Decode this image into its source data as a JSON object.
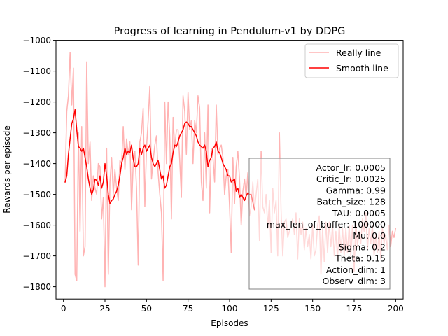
{
  "chart_data": {
    "type": "line",
    "title": "Progress of learning in Pendulum-v1 by DDPG",
    "xlabel": "Episodes",
    "ylabel": "Rewards per episode",
    "xlim": [
      -4.5,
      204.5
    ],
    "ylim": [
      -1840,
      -1000
    ],
    "x_ticks": [
      0,
      25,
      50,
      75,
      100,
      125,
      150,
      175,
      200
    ],
    "y_ticks": [
      -1000,
      -1100,
      -1200,
      -1300,
      -1400,
      -1500,
      -1600,
      -1700,
      -1800
    ],
    "x_tick_labels": [
      "0",
      "25",
      "50",
      "75",
      "100",
      "125",
      "150",
      "175",
      "200"
    ],
    "y_tick_labels": [
      "−1000",
      "−1100",
      "−1200",
      "−1300",
      "−1400",
      "−1500",
      "−1600",
      "−1700",
      "−1800"
    ],
    "grid": false,
    "legend_position": "top-right",
    "series": [
      {
        "name": "Really line",
        "color": "#ffb3b3",
        "x": [
          1,
          2,
          3,
          4,
          5,
          6,
          7,
          8,
          9,
          10,
          11,
          12,
          13,
          14,
          15,
          16,
          17,
          18,
          19,
          20,
          21,
          22,
          23,
          24,
          25,
          26,
          27,
          28,
          29,
          30,
          31,
          32,
          33,
          34,
          35,
          36,
          37,
          38,
          39,
          40,
          41,
          42,
          43,
          44,
          45,
          46,
          47,
          48,
          49,
          50,
          51,
          52,
          53,
          54,
          55,
          56,
          57,
          58,
          59,
          60,
          61,
          62,
          63,
          64,
          65,
          66,
          67,
          68,
          69,
          70,
          71,
          72,
          73,
          74,
          75,
          76,
          77,
          78,
          79,
          80,
          81,
          82,
          83,
          84,
          85,
          86,
          87,
          88,
          89,
          90,
          91,
          92,
          93,
          94,
          95,
          96,
          97,
          98,
          99,
          100,
          101,
          102,
          103,
          104,
          105,
          106,
          107,
          108,
          109,
          110,
          111,
          112,
          113,
          114,
          115,
          116,
          117,
          118,
          119,
          120,
          121,
          122,
          123,
          124,
          125,
          126,
          127,
          128,
          129,
          130,
          131,
          132,
          133,
          134,
          135,
          136,
          137,
          138,
          139,
          140,
          141,
          142,
          143,
          144,
          145,
          146,
          147,
          148,
          149,
          150,
          151,
          152,
          153,
          154,
          155,
          156,
          157,
          158,
          159,
          160,
          161,
          162,
          163,
          164,
          165,
          166,
          167,
          168,
          169,
          170,
          171,
          172,
          173,
          174,
          175,
          176,
          177,
          178,
          179,
          180,
          181,
          182,
          183,
          184,
          185,
          186,
          187,
          188,
          189,
          190,
          191,
          192,
          193,
          194,
          195,
          196,
          197,
          198,
          199,
          200
        ],
        "values": [
          -1460,
          -1230,
          -1180,
          -1040,
          -1210,
          -1090,
          -1760,
          -1780,
          -1300,
          -1620,
          -1280,
          -1700,
          -1670,
          -1070,
          -1400,
          -1330,
          -1520,
          -1440,
          -1480,
          -1500,
          -1400,
          -1410,
          -1580,
          -1510,
          -1800,
          -1350,
          -1760,
          -1460,
          -1380,
          -1500,
          -1420,
          -1480,
          -1520,
          -1390,
          -1400,
          -1280,
          -1420,
          -1320,
          -1370,
          -1330,
          -1550,
          -1400,
          -1360,
          -1480,
          -1730,
          -1330,
          -1300,
          -1220,
          -1540,
          -1350,
          -1260,
          -1150,
          -1450,
          -1390,
          -1340,
          -1310,
          -1430,
          -1500,
          -1560,
          -1780,
          -1200,
          -1400,
          -1200,
          -1310,
          -1580,
          -1250,
          -1350,
          -1290,
          -1290,
          -1390,
          -1510,
          -1180,
          -1230,
          -1370,
          -1170,
          -1290,
          -1260,
          -1400,
          -1260,
          -1300,
          -1180,
          -1220,
          -1460,
          -1520,
          -1300,
          -1480,
          -1210,
          -1560,
          -1350,
          -1380,
          -1460,
          -1210,
          -1370,
          -1350,
          -1340,
          -1380,
          -1500,
          -1440,
          -1420,
          -1540,
          -1690,
          -1380,
          -1530,
          -1410,
          -1360,
          -1450,
          -1600,
          -1490,
          -1450,
          -1510,
          -1430,
          -1570,
          -1540,
          -1460,
          -1550,
          -1500,
          -1450,
          -1650,
          -1360,
          -1540,
          -1560,
          -1500,
          -1610,
          -1520,
          -1690,
          -1480,
          -1560,
          -1520,
          -1700,
          -1300,
          -1550,
          -1700,
          -1590,
          -1580,
          -1640,
          -1620,
          -1600,
          -1580,
          -1630,
          -1560,
          -1710,
          -1580,
          -1630,
          -1590,
          -1680,
          -1610,
          -1670,
          -1630,
          -1710,
          -1600,
          -1700,
          -1680,
          -1600,
          -1570,
          -1760,
          -1610,
          -1720,
          -1590,
          -1690,
          -1590,
          -1670,
          -1600,
          -1700,
          -1620,
          -1710,
          -1600,
          -1690,
          -1610,
          -1700,
          -1610,
          -1690,
          -1600,
          -1700,
          -1600,
          -1750,
          -1590,
          -1670,
          -1620,
          -1660,
          -1580,
          -1620,
          -1560,
          -1680,
          -1610,
          -1660,
          -1600,
          -1700,
          -1630,
          -1690,
          -1620,
          -1710,
          -1610,
          -1660,
          -1630,
          -1680,
          -1600,
          -1670,
          -1620,
          -1640,
          -1610
        ]
      },
      {
        "name": "Smooth line",
        "color": "#ff0000",
        "x": [
          1,
          2,
          3,
          4,
          5,
          6,
          7,
          8,
          9,
          10,
          11,
          12,
          13,
          14,
          15,
          16,
          17,
          18,
          19,
          20,
          21,
          22,
          23,
          24,
          25,
          26,
          27,
          28,
          29,
          30,
          31,
          32,
          33,
          34,
          35,
          36,
          37,
          38,
          39,
          40,
          41,
          42,
          43,
          44,
          45,
          46,
          47,
          48,
          49,
          50,
          51,
          52,
          53,
          54,
          55,
          56,
          57,
          58,
          59,
          60,
          61,
          62,
          63,
          64,
          65,
          66,
          67,
          68,
          69,
          70,
          71,
          72,
          73,
          74,
          75,
          76,
          77,
          78,
          79,
          80,
          81,
          82,
          83,
          84,
          85,
          86,
          87,
          88,
          89,
          90,
          91,
          92,
          93,
          94,
          95,
          96,
          97,
          98,
          99,
          100,
          101,
          102,
          103,
          104,
          105,
          106,
          107,
          108,
          109,
          110,
          111,
          112,
          113,
          114,
          115
        ],
        "values": [
          -1460,
          -1440,
          -1370,
          -1320,
          -1270,
          -1255,
          -1225,
          -1290,
          -1345,
          -1350,
          -1360,
          -1350,
          -1380,
          -1410,
          -1450,
          -1480,
          -1500,
          -1485,
          -1450,
          -1455,
          -1470,
          -1440,
          -1480,
          -1460,
          -1400,
          -1440,
          -1500,
          -1530,
          -1520,
          -1515,
          -1500,
          -1490,
          -1470,
          -1440,
          -1400,
          -1380,
          -1350,
          -1370,
          -1360,
          -1365,
          -1340,
          -1385,
          -1410,
          -1410,
          -1400,
          -1350,
          -1370,
          -1350,
          -1340,
          -1360,
          -1350,
          -1340,
          -1380,
          -1400,
          -1410,
          -1400,
          -1390,
          -1420,
          -1450,
          -1440,
          -1480,
          -1470,
          -1440,
          -1410,
          -1400,
          -1365,
          -1340,
          -1345,
          -1330,
          -1310,
          -1300,
          -1290,
          -1270,
          -1265,
          -1270,
          -1280,
          -1280,
          -1290,
          -1300,
          -1310,
          -1330,
          -1340,
          -1345,
          -1350,
          -1340,
          -1360,
          -1410,
          -1390,
          -1380,
          -1350,
          -1345,
          -1330,
          -1360,
          -1365,
          -1380,
          -1400,
          -1410,
          -1420,
          -1440,
          -1440,
          -1460,
          -1455,
          -1450,
          -1490,
          -1480,
          -1510,
          -1500,
          -1510,
          -1520,
          -1505,
          -1495,
          -1500,
          -1500,
          -1525,
          -1550
        ]
      }
    ],
    "annotation_box": [
      "Actor_lr: 0.0005",
      "Critic_lr: 0.0025",
      "Gamma: 0.99",
      "Batch_size: 128",
      "TAU: 0.0005",
      "max_len_of_buffer: 100000",
      "Mu: 0.0",
      "Sigma: 0.2",
      "Theta: 0.15",
      "Action_dim: 1",
      "Observ_dim: 3"
    ]
  }
}
